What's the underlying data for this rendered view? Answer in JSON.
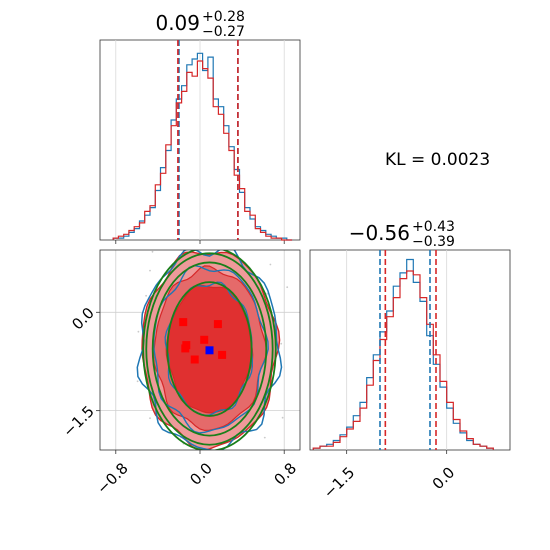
{
  "chart_data": [
    {
      "type": "step-histogram",
      "panel": "x-marginal",
      "title_value": "0.09",
      "title_sup": "+0.28",
      "title_sub": "−0.27",
      "xlim": [
        -0.95,
        0.95
      ],
      "quantiles_blue": [
        -0.2,
        0.36
      ],
      "quantiles_red": [
        -0.21,
        0.36
      ],
      "series": [
        {
          "name": "",
          "color": "#1f77b4",
          "bin_centers": [
            -0.8,
            -0.75,
            -0.7,
            -0.65,
            -0.6,
            -0.55,
            -0.5,
            -0.45,
            -0.4,
            -0.35,
            -0.3,
            -0.25,
            -0.2,
            -0.15,
            -0.1,
            -0.05,
            0.0,
            0.05,
            0.1,
            0.15,
            0.2,
            0.25,
            0.3,
            0.35,
            0.4,
            0.45,
            0.5,
            0.55,
            0.6,
            0.65,
            0.7,
            0.75,
            0.8,
            0.85
          ],
          "values": [
            0.01,
            0.01,
            0.02,
            0.04,
            0.06,
            0.1,
            0.13,
            0.17,
            0.26,
            0.38,
            0.47,
            0.63,
            0.74,
            0.81,
            0.92,
            0.95,
            0.98,
            0.89,
            0.96,
            0.74,
            0.7,
            0.6,
            0.49,
            0.37,
            0.25,
            0.17,
            0.11,
            0.07,
            0.05,
            0.03,
            0.02,
            0.01,
            0.01,
            0.0
          ]
        },
        {
          "name": "",
          "color": "#d62728",
          "bin_centers": [
            -0.8,
            -0.75,
            -0.7,
            -0.65,
            -0.6,
            -0.55,
            -0.5,
            -0.45,
            -0.4,
            -0.35,
            -0.3,
            -0.25,
            -0.2,
            -0.15,
            -0.1,
            -0.05,
            0.0,
            0.05,
            0.1,
            0.15,
            0.2,
            0.25,
            0.3,
            0.35,
            0.4,
            0.45,
            0.5,
            0.55,
            0.6,
            0.65,
            0.7,
            0.75,
            0.8,
            0.85
          ],
          "values": [
            0.01,
            0.02,
            0.03,
            0.05,
            0.07,
            0.09,
            0.15,
            0.18,
            0.29,
            0.35,
            0.5,
            0.6,
            0.72,
            0.78,
            0.88,
            0.86,
            0.94,
            0.9,
            0.85,
            0.7,
            0.66,
            0.56,
            0.47,
            0.34,
            0.27,
            0.15,
            0.13,
            0.06,
            0.04,
            0.02,
            0.01,
            0.01,
            0.0,
            0.0
          ]
        }
      ]
    },
    {
      "type": "step-histogram",
      "panel": "y-marginal",
      "title_value": "−0.56",
      "title_sup": "+0.43",
      "title_sub": "−0.39",
      "xlim": [
        -2.05,
        0.95
      ],
      "xticks": [
        "−1.5",
        "0.0"
      ],
      "xtick_values": [
        -1.5,
        0.0
      ],
      "quantiles_blue": [
        -1.0,
        -0.25
      ],
      "quantiles_red": [
        -0.92,
        -0.16
      ],
      "series": [
        {
          "name": "",
          "color": "#1f77b4",
          "bin_centers": [
            -1.95,
            -1.85,
            -1.75,
            -1.65,
            -1.55,
            -1.45,
            -1.35,
            -1.25,
            -1.15,
            -1.05,
            -0.95,
            -0.85,
            -0.75,
            -0.65,
            -0.55,
            -0.45,
            -0.35,
            -0.25,
            -0.15,
            -0.05,
            0.05,
            0.15,
            0.25,
            0.35,
            0.45,
            0.55,
            0.65
          ],
          "values": [
            0.01,
            0.02,
            0.03,
            0.05,
            0.08,
            0.12,
            0.18,
            0.25,
            0.38,
            0.5,
            0.62,
            0.73,
            0.86,
            0.93,
            1.0,
            0.88,
            0.78,
            0.6,
            0.45,
            0.33,
            0.22,
            0.14,
            0.09,
            0.05,
            0.03,
            0.02,
            0.01
          ]
        },
        {
          "name": "",
          "color": "#d62728",
          "bin_centers": [
            -1.95,
            -1.85,
            -1.75,
            -1.65,
            -1.55,
            -1.45,
            -1.35,
            -1.25,
            -1.15,
            -1.05,
            -0.95,
            -0.85,
            -0.75,
            -0.65,
            -0.55,
            -0.45,
            -0.35,
            -0.25,
            -0.15,
            -0.05,
            0.05,
            0.15,
            0.25,
            0.35,
            0.45,
            0.55,
            0.65
          ],
          "values": [
            0.01,
            0.02,
            0.02,
            0.04,
            0.07,
            0.11,
            0.15,
            0.22,
            0.34,
            0.47,
            0.58,
            0.7,
            0.8,
            0.9,
            0.94,
            0.92,
            0.8,
            0.66,
            0.5,
            0.36,
            0.25,
            0.16,
            0.1,
            0.06,
            0.03,
            0.02,
            0.01
          ]
        }
      ]
    },
    {
      "type": "contour",
      "panel": "joint",
      "xlim": [
        -0.95,
        0.95
      ],
      "ylim": [
        -2.1,
        0.95
      ],
      "xticks": [
        "−0.8",
        "0.0",
        "0.8"
      ],
      "xtick_values": [
        -0.8,
        0.0,
        0.8
      ],
      "yticks": [
        "0.0",
        "−1.5"
      ],
      "ytick_values": [
        0.0,
        -1.5
      ],
      "center": [
        0.09,
        -0.56
      ],
      "blue_marker": [
        0.09,
        -0.58
      ],
      "red_markers": [
        [
          -0.16,
          -0.15
        ],
        [
          0.17,
          -0.18
        ],
        [
          -0.13,
          -0.5
        ],
        [
          0.04,
          -0.42
        ],
        [
          0.21,
          -0.65
        ],
        [
          -0.05,
          -0.72
        ],
        [
          -0.14,
          -0.55
        ]
      ],
      "green_ellipses": [
        {
          "rx": 0.4,
          "ry": 1.02
        },
        {
          "rx": 0.54,
          "ry": 1.32
        },
        {
          "rx": 0.6,
          "ry": 1.46
        },
        {
          "rx": 0.63,
          "ry": 1.55
        }
      ],
      "colors": {
        "blue": "#1f77b4",
        "red": "#d62728",
        "green": "#1a7f1a",
        "red_fill_dark": "#e03030",
        "red_fill_light": "#ef9a9a"
      }
    }
  ],
  "kl_label": "KL = 0.0023"
}
